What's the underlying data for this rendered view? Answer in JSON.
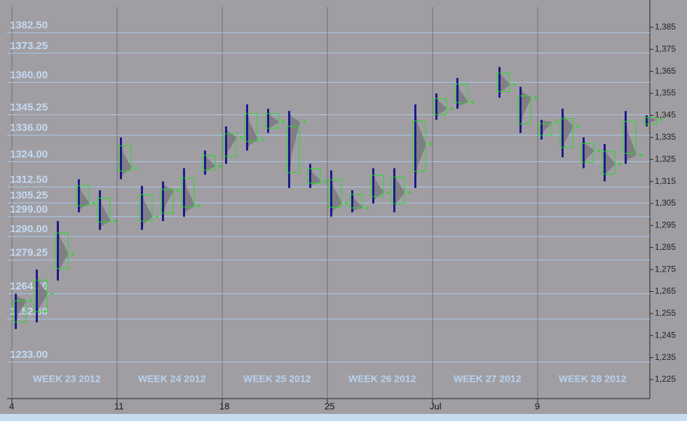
{
  "chart_data": {
    "type": "market-profile",
    "level_labels": [
      {
        "value": 1382.5,
        "label": "1382.50"
      },
      {
        "value": 1373.25,
        "label": "1373.25"
      },
      {
        "value": 1360,
        "label": "1360.00"
      },
      {
        "value": 1345.25,
        "label": "1345.25"
      },
      {
        "value": 1336,
        "label": "1336.00"
      },
      {
        "value": 1324,
        "label": "1324.00"
      },
      {
        "value": 1312.5,
        "label": "1312.50"
      },
      {
        "value": 1305.25,
        "label": "1305.25"
      },
      {
        "value": 1299,
        "label": "1299.00"
      },
      {
        "value": 1290,
        "label": "1290.00"
      },
      {
        "value": 1279.25,
        "label": "1279.25"
      },
      {
        "value": 1264,
        "label": "1264.00"
      },
      {
        "value": 1252.5,
        "label": "1252.50"
      },
      {
        "value": 1233,
        "label": "1233.00"
      }
    ],
    "ylim": [
      1216.4,
      1397.4
    ],
    "yticks": [
      {
        "value": 1385,
        "label": "1,385"
      },
      {
        "value": 1375,
        "label": "1,375"
      },
      {
        "value": 1365,
        "label": "1,365"
      },
      {
        "value": 1355,
        "label": "1,355"
      },
      {
        "value": 1345,
        "label": "1,345"
      },
      {
        "value": 1335,
        "label": "1,335"
      },
      {
        "value": 1325,
        "label": "1,325"
      },
      {
        "value": 1315,
        "label": "1,315"
      },
      {
        "value": 1305,
        "label": "1,305"
      },
      {
        "value": 1295,
        "label": "1,295"
      },
      {
        "value": 1285,
        "label": "1,285"
      },
      {
        "value": 1275,
        "label": "1,275"
      },
      {
        "value": 1265,
        "label": "1,265"
      },
      {
        "value": 1255,
        "label": "1,255"
      },
      {
        "value": 1245,
        "label": "1,245"
      },
      {
        "value": 1235,
        "label": "1,235"
      },
      {
        "value": 1225,
        "label": "1,225"
      }
    ],
    "x_labels": [
      "4",
      "11",
      "18",
      "25",
      "Jul",
      "9"
    ],
    "week_labels": [
      "WEEK 23 2012",
      "WEEK 24 2012",
      "WEEK 25 2012",
      "WEEK 26 2012",
      "WEEK 27 2012",
      "WEEK 28 2012"
    ],
    "profiles": [
      {
        "low": 1248,
        "high": 1264,
        "poc": 1261
      },
      {
        "low": 1251,
        "high": 1275,
        "poc": 1264
      },
      {
        "low": 1270,
        "high": 1297,
        "poc": 1282
      },
      {
        "low": 1301,
        "high": 1316,
        "poc": 1305
      },
      {
        "low": 1293,
        "high": 1311,
        "poc": 1297
      },
      {
        "low": 1316,
        "high": 1335,
        "poc": 1321
      },
      {
        "low": 1293,
        "high": 1313,
        "poc": 1299
      },
      {
        "low": 1297,
        "high": 1315,
        "poc": 1311
      },
      {
        "low": 1299,
        "high": 1321,
        "poc": 1304
      },
      {
        "low": 1318,
        "high": 1329,
        "poc": 1322
      },
      {
        "low": 1323,
        "high": 1340,
        "poc": 1335
      },
      {
        "low": 1329,
        "high": 1350,
        "poc": 1334
      },
      {
        "low": 1337,
        "high": 1348,
        "poc": 1342
      },
      {
        "low": 1312,
        "high": 1347,
        "poc": 1342
      },
      {
        "low": 1312,
        "high": 1323,
        "poc": 1315
      },
      {
        "low": 1299,
        "high": 1320,
        "poc": 1305
      },
      {
        "low": 1301,
        "high": 1311,
        "poc": 1303
      },
      {
        "low": 1305,
        "high": 1321,
        "poc": 1310
      },
      {
        "low": 1301,
        "high": 1321,
        "poc": 1310
      },
      {
        "low": 1312,
        "high": 1350,
        "poc": 1332
      },
      {
        "low": 1343,
        "high": 1355,
        "poc": 1348
      },
      {
        "low": 1348,
        "high": 1362,
        "poc": 1351
      },
      null,
      {
        "low": 1353,
        "high": 1367,
        "poc": 1359
      },
      {
        "low": 1337,
        "high": 1358,
        "poc": 1353
      },
      {
        "low": 1334,
        "high": 1343,
        "poc": 1342
      },
      {
        "low": 1326,
        "high": 1348,
        "poc": 1340
      },
      {
        "low": 1321,
        "high": 1335,
        "poc": 1329
      },
      {
        "low": 1315,
        "high": 1332,
        "poc": 1323
      },
      {
        "low": 1323,
        "high": 1347,
        "poc": 1327
      },
      {
        "low": 1340,
        "high": 1345,
        "poc": 1343
      }
    ],
    "colors": {
      "range": "#1a1a8a",
      "profile": "#7a7880",
      "poc": "#22dd22",
      "level": "#a9c9ec"
    }
  }
}
